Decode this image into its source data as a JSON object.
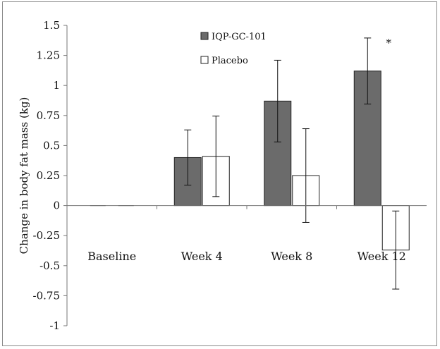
{
  "chart_data": {
    "type": "bar",
    "title": "",
    "xlabel": "",
    "ylabel": "Change in body fat mass (kg)",
    "categories": [
      "Baseline",
      "Week 4",
      "Week 8",
      "Week 12"
    ],
    "ylim": [
      -1,
      1.5
    ],
    "yticks": [
      1.5,
      1.25,
      1,
      0.75,
      0.5,
      0.25,
      0,
      -0.25,
      -0.5,
      -0.75,
      -1
    ],
    "ytick_labels": [
      "1.5",
      "1.25",
      "1",
      "0.75",
      "0.5",
      "0.25",
      "0",
      "-0.25",
      "-0.5",
      "-0.75",
      "-1"
    ],
    "grid": false,
    "legend_position": "top-center",
    "series": [
      {
        "name": "IQP-GC-101",
        "color": "#6b6b6b",
        "values": [
          0,
          0.4,
          0.87,
          1.12
        ],
        "errors": [
          0,
          0.23,
          0.34,
          0.275
        ]
      },
      {
        "name": "Placebo",
        "color": "#ffffff",
        "values": [
          0,
          0.41,
          0.25,
          -0.37
        ],
        "errors": [
          0,
          0.335,
          0.39,
          0.325
        ]
      }
    ],
    "annotations": [
      {
        "text": "*",
        "category": "Week 12",
        "series": "IQP-GC-101"
      }
    ]
  }
}
